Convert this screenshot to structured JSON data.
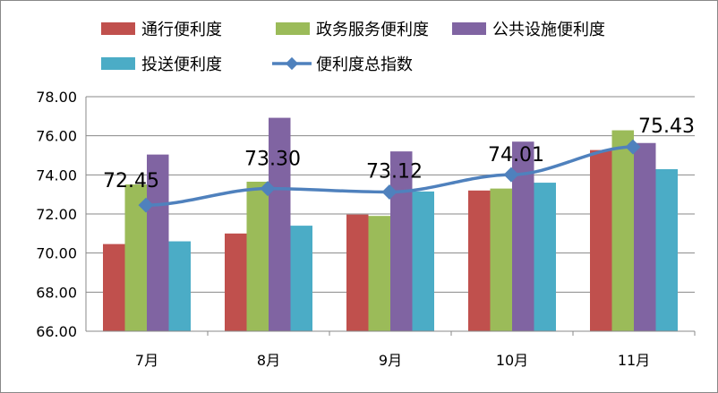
{
  "chart_data": {
    "type": "bar",
    "title": "",
    "xlabel": "",
    "ylabel": "",
    "ylim": [
      66,
      78
    ],
    "yticks": [
      "66.00",
      "68.00",
      "70.00",
      "72.00",
      "74.00",
      "76.00",
      "78.00"
    ],
    "grid": true,
    "legend_position": "top",
    "categories": [
      "7月",
      "8月",
      "9月",
      "10月",
      "11月"
    ],
    "series": [
      {
        "name": "通行便利度",
        "type": "bar",
        "color": "#C0504D",
        "values": [
          70.46,
          71.0,
          71.97,
          73.2,
          75.27
        ]
      },
      {
        "name": "政务服务便利度",
        "type": "bar",
        "color": "#9BBB59",
        "values": [
          73.51,
          73.65,
          71.9,
          73.3,
          76.28
        ]
      },
      {
        "name": "公共设施便利度",
        "type": "bar",
        "color": "#8064A2",
        "values": [
          75.04,
          76.92,
          75.2,
          75.7,
          75.63
        ]
      },
      {
        "name": "投送便利度",
        "type": "bar",
        "color": "#4BACC6",
        "values": [
          70.6,
          71.4,
          73.15,
          73.6,
          74.29
        ]
      },
      {
        "name": "便利度总指数",
        "type": "line",
        "color": "#4F81BD",
        "values": [
          72.45,
          73.3,
          73.12,
          74.01,
          75.43
        ],
        "labels": [
          "72.45",
          "73.30",
          "73.12",
          "74.01",
          "75.43"
        ]
      }
    ]
  }
}
